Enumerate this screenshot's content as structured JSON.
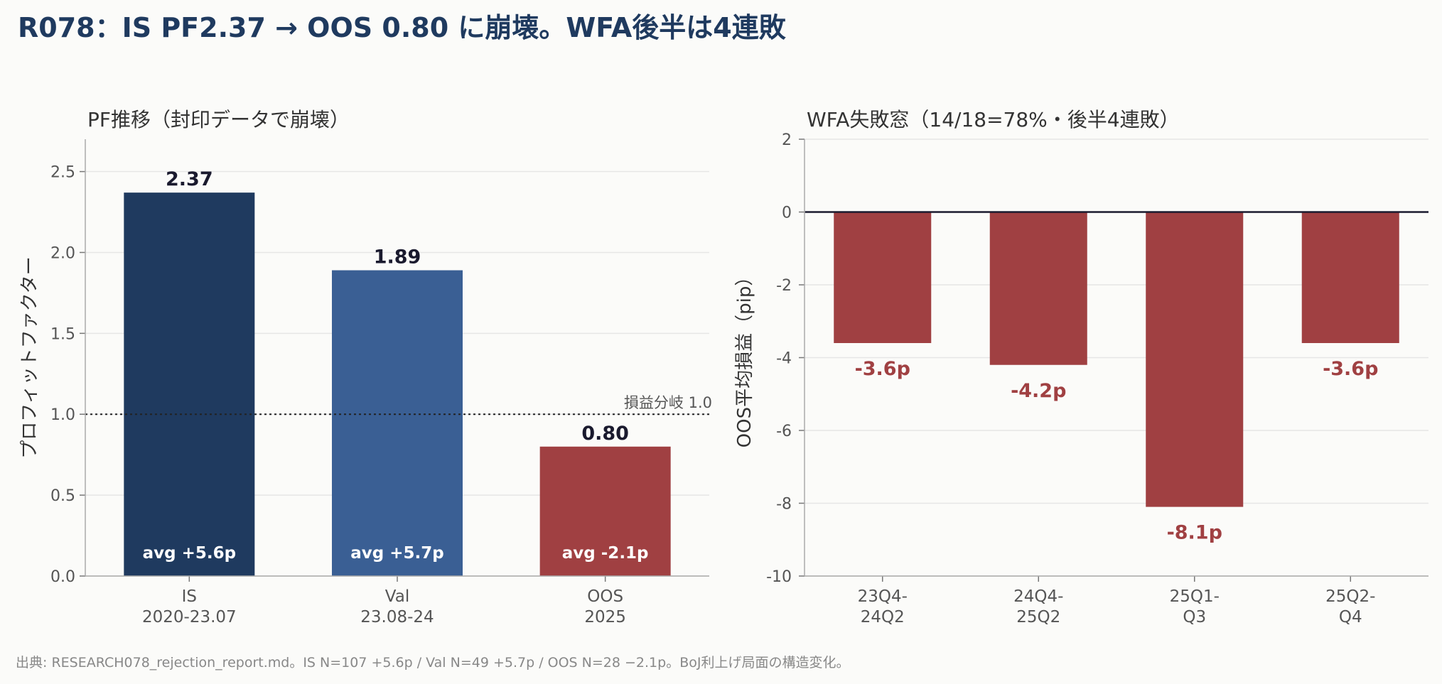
{
  "title": "R078：IS PF2.37 → OOS 0.80 に崩壊。WFA後半は4連敗",
  "footer": "出典: RESEARCH078_rejection_report.md。IS N=107 +5.6p / Val N=49 +5.7p / OOS N=28 −2.1p。BoJ利上げ局面の構造変化。",
  "colors": {
    "title": "#1f3a5f",
    "text": "#333333",
    "axis": "#555555",
    "grid": "#e6e6e6",
    "loss": "#a04042"
  },
  "chart_data": [
    {
      "type": "bar",
      "title": "PF推移（封印データで崩壊）",
      "ylabel": "プロフィットファクター",
      "ylim": [
        0,
        2.7
      ],
      "yticks": [
        "0.0",
        "0.5",
        "1.0",
        "1.5",
        "2.0",
        "2.5"
      ],
      "categories": [
        [
          "IS",
          "2020-23.07"
        ],
        [
          "Val",
          "23.08-24"
        ],
        [
          "OOS",
          "2025"
        ]
      ],
      "values": [
        2.37,
        1.89,
        0.8
      ],
      "value_labels": [
        "2.37",
        "1.89",
        "0.80"
      ],
      "inner_labels": [
        "avg +5.6p",
        "avg +5.7p",
        "avg -2.1p"
      ],
      "bar_colors": [
        "#1f3a5f",
        "#3a5f94",
        "#a04042"
      ],
      "reference_line": {
        "value": 1.0,
        "label": "損益分岐 1.0",
        "style": "dotted"
      },
      "grid": true
    },
    {
      "type": "bar",
      "title": "WFA失敗窓（14/18=78%・後半4連敗）",
      "ylabel": "OOS平均損益（pip）",
      "ylim": [
        -10,
        2
      ],
      "yticks": [
        "2",
        "0",
        "-2",
        "-4",
        "-6",
        "-8",
        "-10"
      ],
      "categories": [
        [
          "23Q4-",
          "24Q2"
        ],
        [
          "24Q4-",
          "25Q2"
        ],
        [
          "25Q1-",
          "Q3"
        ],
        [
          "25Q2-",
          "Q4"
        ]
      ],
      "values": [
        -3.6,
        -4.2,
        -8.1,
        -3.6
      ],
      "value_labels": [
        "-3.6p",
        "-4.2p",
        "-8.1p",
        "-3.6p"
      ],
      "bar_color": "#a04042",
      "zero_line": true,
      "grid": true
    }
  ]
}
